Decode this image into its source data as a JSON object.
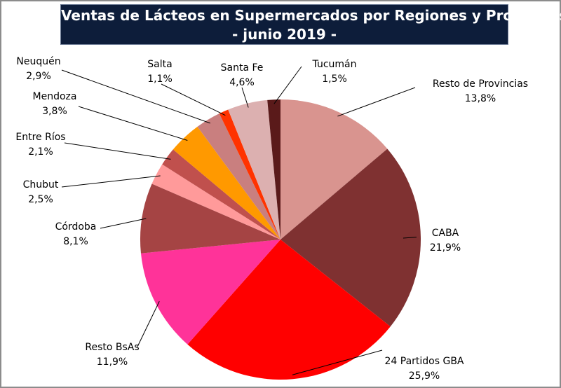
{
  "chart_data": {
    "type": "pie",
    "title": "Ventas de Lácteos en Supermercados por Regiones y Provincias",
    "subtitle": "- junio 2019 -",
    "slices": [
      {
        "label": "Resto de Provincias",
        "value": 13.8,
        "display": "13,8%",
        "color": "#d9948f"
      },
      {
        "label": "CABA",
        "value": 21.9,
        "display": "21,9%",
        "color": "#7f3131"
      },
      {
        "label": "24 Partidos GBA",
        "value": 25.9,
        "display": "25,9%",
        "color": "#ff0000"
      },
      {
        "label": "Resto BsAs",
        "value": 11.9,
        "display": "11,9%",
        "color": "#ff3399"
      },
      {
        "label": "Córdoba",
        "value": 8.1,
        "display": "8,1%",
        "color": "#a54444"
      },
      {
        "label": "Chubut",
        "value": 2.5,
        "display": "2,5%",
        "color": "#ff9a9a"
      },
      {
        "label": "Entre Ríos",
        "value": 2.1,
        "display": "2,1%",
        "color": "#c0504d"
      },
      {
        "label": "Mendoza",
        "value": 3.8,
        "display": "3,8%",
        "color": "#ff9900"
      },
      {
        "label": "Neuquén",
        "value": 2.9,
        "display": "2,9%",
        "color": "#c97f7f"
      },
      {
        "label": "Salta",
        "value": 1.1,
        "display": "1,1%",
        "color": "#ff3300"
      },
      {
        "label": "Santa Fe",
        "value": 4.6,
        "display": "4,6%",
        "color": "#dcb0b0"
      },
      {
        "label": "Tucumán",
        "value": 1.5,
        "display": "1,5%",
        "color": "#5a1a1a"
      }
    ],
    "legend": "none",
    "label_position": "outside-with-leader-lines"
  }
}
